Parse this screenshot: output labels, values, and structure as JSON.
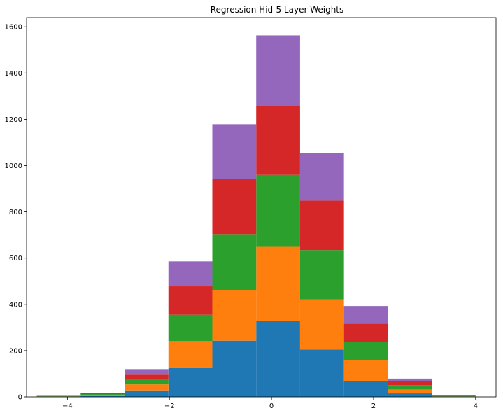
{
  "chart_data": {
    "type": "bar",
    "stacked": true,
    "title": "Regression Hid-5 Layer Weights",
    "xlabel": "",
    "ylabel": "",
    "xlim": [
      -4.8,
      4.4
    ],
    "ylim": [
      0,
      1640
    ],
    "xticks": [
      -4,
      -2,
      0,
      2,
      4
    ],
    "yticks": [
      0,
      200,
      400,
      600,
      800,
      1000,
      1200,
      1400,
      1600
    ],
    "bin_edges": [
      -4.6,
      -3.74,
      -2.88,
      -2.02,
      -1.16,
      -0.3,
      0.56,
      1.42,
      2.28,
      3.14,
      4.0
    ],
    "series": [
      {
        "color": "#1f77b4",
        "values": [
          1,
          4,
          28,
          125,
          243,
          327,
          205,
          68,
          15,
          1
        ]
      },
      {
        "color": "#ff7f0e",
        "values": [
          1,
          4,
          26,
          116,
          218,
          322,
          217,
          91,
          17,
          1
        ]
      },
      {
        "color": "#2ca02c",
        "values": [
          1,
          4,
          24,
          114,
          243,
          311,
          213,
          79,
          19,
          1
        ]
      },
      {
        "color": "#d62728",
        "values": [
          1,
          3,
          18,
          123,
          240,
          296,
          214,
          78,
          18,
          2
        ]
      },
      {
        "color": "#9467bd",
        "values": [
          1,
          3,
          24,
          108,
          235,
          307,
          207,
          77,
          10,
          1
        ]
      }
    ]
  }
}
